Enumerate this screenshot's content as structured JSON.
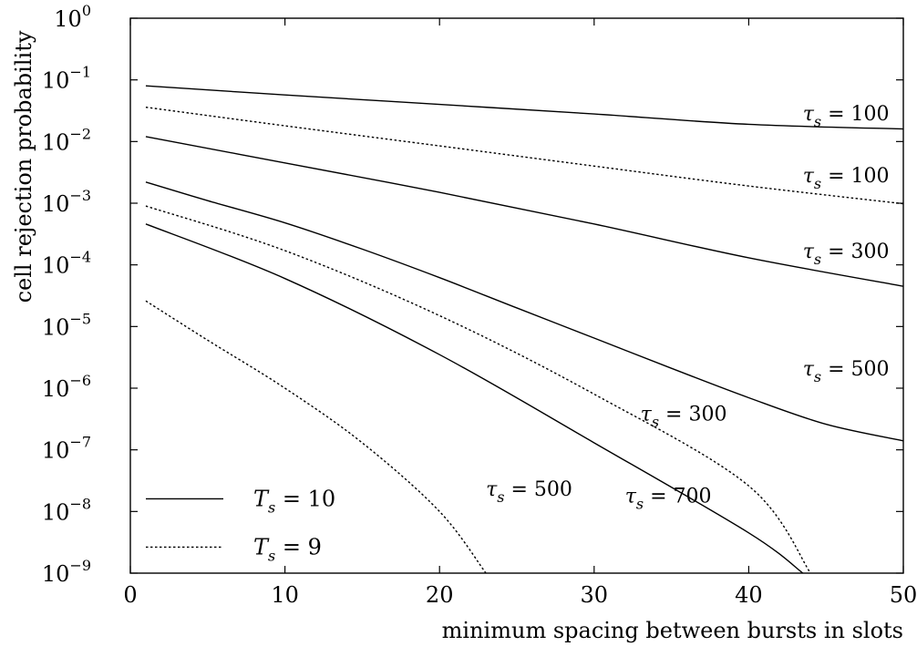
{
  "chart_data": {
    "type": "line",
    "title": "",
    "xlabel": "minimum spacing between bursts in slots",
    "ylabel": "cell rejection probability",
    "xlim": [
      0,
      50
    ],
    "ylim": [
      1e-09,
      1
    ],
    "yscale": "log",
    "grid": false,
    "legend_position": "bottom-left",
    "x_ticks": [
      0,
      10,
      20,
      30,
      40,
      50
    ],
    "y_ticks": [
      {
        "exp": -9,
        "value": 1e-09
      },
      {
        "exp": -8,
        "value": 1e-08
      },
      {
        "exp": -7,
        "value": 1e-07
      },
      {
        "exp": -6,
        "value": 1e-06
      },
      {
        "exp": -5,
        "value": 1e-05
      },
      {
        "exp": -4,
        "value": 0.0001
      },
      {
        "exp": -3,
        "value": 0.001
      },
      {
        "exp": -2,
        "value": 0.01
      },
      {
        "exp": -1,
        "value": 0.1
      },
      {
        "exp": 0,
        "value": 1
      }
    ],
    "legend": [
      {
        "label": "T_s = 10",
        "style": "solid"
      },
      {
        "label": "T_s = 9",
        "style": "dotted"
      }
    ],
    "series": [
      {
        "label": "τ_s = 100",
        "style": "solid",
        "x": [
          1,
          10,
          20,
          30,
          40,
          50
        ],
        "y": [
          0.08,
          0.057,
          0.04,
          0.028,
          0.019,
          0.016
        ]
      },
      {
        "label": "τ_s = 100",
        "style": "dotted",
        "x": [
          1,
          10,
          20,
          30,
          40,
          50
        ],
        "y": [
          0.036,
          0.018,
          0.0085,
          0.004,
          0.0019,
          0.00098
        ]
      },
      {
        "label": "τ_s = 300",
        "style": "solid",
        "x": [
          1,
          10,
          20,
          30,
          40,
          50
        ],
        "y": [
          0.012,
          0.0045,
          0.0015,
          0.00046,
          0.00013,
          4.5e-05
        ]
      },
      {
        "label": "τ_s = 500",
        "style": "solid",
        "x": [
          1,
          5,
          10,
          15,
          20,
          25,
          30,
          35,
          40,
          45,
          50
        ],
        "y": [
          0.0022,
          0.0011,
          0.00048,
          0.00018,
          6.2e-05,
          2e-05,
          6.5e-06,
          2.1e-06,
          7e-07,
          2.6e-07,
          1.4e-07
        ]
      },
      {
        "label": "τ_s = 300",
        "style": "dotted",
        "x": [
          1,
          10,
          20,
          30,
          40,
          44
        ],
        "y": [
          0.0009,
          0.00017,
          1.5e-05,
          8e-07,
          2.6e-08,
          1e-09
        ]
      },
      {
        "label": "τ_s = 700",
        "style": "solid",
        "x": [
          1,
          10,
          20,
          30,
          40,
          43.5
        ],
        "y": [
          0.00046,
          6e-05,
          3.5e-06,
          1.3e-07,
          4.5e-09,
          1e-09
        ]
      },
      {
        "label": "τ_s = 500",
        "style": "dotted",
        "x": [
          1,
          5,
          10,
          15,
          20,
          23
        ],
        "y": [
          2.6e-05,
          6e-06,
          1e-06,
          1.3e-07,
          1e-08,
          1e-09
        ]
      }
    ],
    "annotations": [
      {
        "text": "τ_s = 100",
        "x": 43.5,
        "y": 0.022
      },
      {
        "text": "τ_s = 100",
        "x": 43.5,
        "y": 0.0022
      },
      {
        "text": "τ_s = 300",
        "x": 43.5,
        "y": 0.00013
      },
      {
        "text": "τ_s = 500",
        "x": 43.5,
        "y": 1.6e-06
      },
      {
        "text": "τ_s = 300",
        "x": 33,
        "y": 3e-07
      },
      {
        "text": "τ_s = 500",
        "x": 23,
        "y": 1.8e-08
      },
      {
        "text": "τ_s = 700",
        "x": 32,
        "y": 1.4e-08
      }
    ]
  }
}
